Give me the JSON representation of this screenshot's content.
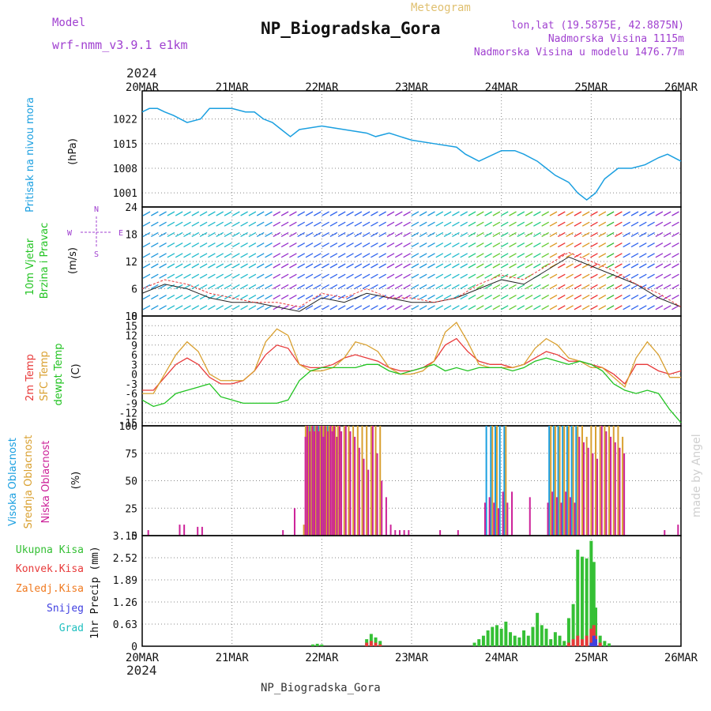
{
  "header": {
    "model_label": "Model",
    "model_name": "wrf-nmm_v3.9.1 e1km",
    "chart_type_label": "Meteogram",
    "station_title": "NP_Biogradska_Gora",
    "coords": "lon,lat (19.5875E, 42.8875N)",
    "elevation": "Nadmorska Visina 1115m",
    "model_elevation": "Nadmorska Visina u modelu 1476.77m",
    "watermark": "made by Angel",
    "footer_station": "NP_Biogradska_Gora",
    "year": "2024"
  },
  "colors": {
    "pressure": "#1a9fe0",
    "temp2m": "#e83a3a",
    "sfc_temp": "#d9a030",
    "dewpt": "#22c322",
    "high_cloud": "#1a9fe0",
    "mid_cloud": "#d9a030",
    "low_cloud": "#cc2299",
    "total_precip": "#35c035",
    "conv_precip": "#e83a3a",
    "freezing": "#f07a20",
    "snow": "#4040e0",
    "hail": "#20c0c0",
    "purple": "#a040d0",
    "gold": "#e0c070"
  },
  "chart_data": [
    {
      "type": "line",
      "panel": "pressure",
      "ylabel_lines": [
        "Pritisak na nivou mora",
        "(hPa)"
      ],
      "x_ticks": [
        "20MAR",
        "21MAR",
        "22MAR",
        "23MAR",
        "24MAR",
        "25MAR",
        "26MAR"
      ],
      "ylim": [
        997,
        1030
      ],
      "y_ticks": [
        1001,
        1008,
        1015,
        1022
      ],
      "x": [
        0,
        0.08,
        0.17,
        0.25,
        0.35,
        0.5,
        0.65,
        0.75,
        0.85,
        1.0,
        1.15,
        1.25,
        1.35,
        1.45,
        1.55,
        1.65,
        1.75,
        2.0,
        2.25,
        2.5,
        2.6,
        2.75,
        3.0,
        3.25,
        3.5,
        3.6,
        3.75,
        4.0,
        4.15,
        4.25,
        4.4,
        4.5,
        4.6,
        4.75,
        4.85,
        4.95,
        5.05,
        5.15,
        5.3,
        5.45,
        5.6,
        5.75,
        5.85,
        6.0
      ],
      "series": [
        {
          "values": [
            1024,
            1025,
            1025,
            1024,
            1023,
            1021,
            1022,
            1025,
            1025,
            1025,
            1024,
            1024,
            1022,
            1021,
            1019,
            1017,
            1019,
            1020,
            1019,
            1018,
            1017,
            1018,
            1016,
            1015,
            1014,
            1012,
            1010,
            1013,
            1013,
            1012,
            1010,
            1008,
            1006,
            1004,
            1001,
            999,
            1001,
            1005,
            1008,
            1008,
            1009,
            1011,
            1012,
            1010
          ]
        }
      ]
    },
    {
      "type": "line",
      "panel": "wind",
      "ylabel_lines": [
        "10m Vjetar",
        "Brzina i Pravac",
        "(m/s)"
      ],
      "ylim": [
        0,
        24
      ],
      "y_ticks": [
        0,
        6,
        12,
        18,
        24
      ],
      "compass": [
        "N",
        "E",
        "S",
        "W"
      ],
      "x": [
        0,
        0.25,
        0.5,
        0.75,
        1.0,
        1.25,
        1.5,
        1.75,
        2.0,
        2.25,
        2.5,
        2.75,
        3.0,
        3.25,
        3.5,
        3.75,
        4.0,
        4.25,
        4.5,
        4.75,
        5.0,
        5.25,
        5.5,
        5.75,
        6.0
      ],
      "series": [
        {
          "values": [
            5,
            7,
            6,
            4,
            3,
            3,
            2,
            1,
            4,
            3,
            5,
            4,
            3,
            3,
            4,
            6,
            8,
            7,
            10,
            13,
            11,
            9,
            7,
            4,
            2
          ]
        },
        {
          "values": [
            6,
            8,
            7,
            5,
            4,
            3,
            3,
            2,
            5,
            4,
            6,
            4,
            4,
            3,
            4,
            7,
            9,
            8,
            11,
            14,
            12,
            10,
            7,
            5,
            2
          ]
        }
      ]
    },
    {
      "type": "line",
      "panel": "temperature",
      "ylabel_lines": [
        "2m Temp",
        "SFC Temp",
        "dewpt Temp",
        "(C)"
      ],
      "ylim": [
        -16,
        18
      ],
      "y_ticks": [
        -15,
        -12,
        -9,
        -6,
        -3,
        0,
        3,
        6,
        9,
        12,
        15,
        18
      ],
      "x": [
        0,
        0.125,
        0.25,
        0.375,
        0.5,
        0.625,
        0.75,
        0.875,
        1.0,
        1.125,
        1.25,
        1.375,
        1.5,
        1.625,
        1.75,
        1.875,
        2.0,
        2.125,
        2.25,
        2.375,
        2.5,
        2.625,
        2.75,
        2.875,
        3.0,
        3.125,
        3.25,
        3.375,
        3.5,
        3.625,
        3.75,
        3.875,
        4.0,
        4.125,
        4.25,
        4.375,
        4.5,
        4.625,
        4.75,
        4.875,
        5.0,
        5.125,
        5.25,
        5.375,
        5.5,
        5.625,
        5.75,
        5.875,
        6.0
      ],
      "series": [
        {
          "name": "2m Temp",
          "values": [
            -5,
            -5,
            -1,
            3,
            5,
            3,
            -1,
            -3,
            -3,
            -2,
            1,
            6,
            9,
            8,
            3,
            2,
            2,
            3,
            5,
            6,
            5,
            4,
            2,
            1,
            1,
            2,
            4,
            9,
            11,
            7,
            4,
            3,
            3,
            2,
            3,
            5,
            7,
            6,
            4,
            4,
            3,
            2,
            0,
            -3,
            3,
            3,
            1,
            0,
            1
          ]
        },
        {
          "name": "SFC Temp",
          "values": [
            -6,
            -6,
            0,
            6,
            10,
            7,
            0,
            -2,
            -2,
            -2,
            1,
            10,
            14,
            12,
            3,
            1,
            1,
            2,
            5,
            10,
            9,
            7,
            2,
            0,
            0,
            1,
            4,
            13,
            16,
            10,
            3,
            2,
            2,
            2,
            3,
            8,
            11,
            9,
            5,
            4,
            2,
            2,
            -1,
            -4,
            5,
            10,
            6,
            -1,
            -1
          ]
        },
        {
          "name": "dewpt Temp",
          "values": [
            -8,
            -10,
            -9,
            -6,
            -5,
            -4,
            -3,
            -7,
            -8,
            -9,
            -9,
            -9,
            -9,
            -8,
            -2,
            1,
            2,
            2,
            2,
            2,
            3,
            3,
            1,
            0,
            1,
            2,
            3,
            1,
            2,
            1,
            2,
            2,
            2,
            1,
            2,
            4,
            5,
            4,
            3,
            4,
            3,
            1,
            -3,
            -5,
            -6,
            -5,
            -6,
            -11,
            -15
          ]
        }
      ]
    },
    {
      "type": "bar",
      "panel": "clouds",
      "ylabel_lines": [
        "Visoka Oblacnost",
        "Srednja Oblacnost",
        "Niska Oblacnost",
        "(%)"
      ],
      "ylim": [
        0,
        100
      ],
      "y_ticks": [
        0,
        25,
        50,
        75,
        100
      ],
      "x": [
        0.05,
        0.4,
        0.45,
        0.6,
        0.65,
        1.55,
        1.68,
        1.8,
        1.82,
        1.85,
        1.88,
        1.9,
        1.93,
        1.95,
        1.98,
        2.0,
        2.02,
        2.05,
        2.08,
        2.1,
        2.12,
        2.15,
        2.18,
        2.2,
        2.25,
        2.3,
        2.35,
        2.4,
        2.45,
        2.5,
        2.55,
        2.6,
        2.65,
        2.7,
        2.75,
        2.8,
        2.85,
        2.9,
        2.95,
        3.3,
        3.5,
        3.8,
        3.85,
        3.9,
        3.95,
        4.0,
        4.05,
        4.1,
        4.3,
        4.5,
        4.55,
        4.6,
        4.65,
        4.7,
        4.75,
        4.8,
        4.85,
        4.9,
        4.95,
        5.0,
        5.05,
        5.1,
        5.15,
        5.2,
        5.25,
        5.3,
        5.35,
        5.8,
        5.95
      ],
      "series": [
        {
          "name": "Visoka Oblacnost",
          "values": [
            0,
            0,
            0,
            0,
            0,
            0,
            0,
            0,
            0,
            0,
            100,
            100,
            100,
            100,
            100,
            100,
            100,
            100,
            100,
            100,
            0,
            0,
            0,
            0,
            0,
            0,
            0,
            0,
            0,
            0,
            0,
            0,
            0,
            0,
            0,
            0,
            0,
            0,
            0,
            0,
            0,
            0,
            100,
            100,
            100,
            100,
            100,
            0,
            0,
            0,
            100,
            100,
            100,
            100,
            100,
            100,
            100,
            0,
            0,
            0,
            0,
            0,
            0,
            0,
            0,
            0,
            0,
            0,
            0
          ]
        },
        {
          "name": "Srednja Oblacnost",
          "values": [
            0,
            0,
            0,
            0,
            0,
            0,
            0,
            10,
            100,
            100,
            100,
            100,
            100,
            100,
            100,
            100,
            100,
            100,
            100,
            100,
            100,
            100,
            100,
            100,
            100,
            100,
            100,
            100,
            100,
            100,
            100,
            100,
            100,
            0,
            0,
            0,
            0,
            0,
            0,
            0,
            0,
            0,
            0,
            100,
            100,
            0,
            100,
            0,
            0,
            0,
            100,
            100,
            100,
            100,
            100,
            100,
            100,
            100,
            90,
            100,
            100,
            100,
            100,
            100,
            100,
            100,
            90,
            0,
            0
          ]
        },
        {
          "name": "Niska Oblacnost",
          "values": [
            5,
            10,
            10,
            8,
            8,
            5,
            25,
            90,
            100,
            95,
            100,
            95,
            100,
            95,
            100,
            90,
            100,
            95,
            100,
            95,
            100,
            90,
            100,
            95,
            100,
            95,
            90,
            80,
            70,
            60,
            100,
            75,
            50,
            35,
            10,
            5,
            5,
            5,
            5,
            5,
            5,
            30,
            35,
            30,
            25,
            40,
            30,
            40,
            35,
            30,
            40,
            35,
            30,
            40,
            35,
            30,
            90,
            85,
            80,
            75,
            70,
            100,
            95,
            90,
            85,
            80,
            75,
            5,
            10
          ]
        }
      ]
    },
    {
      "type": "bar",
      "panel": "precip",
      "ylabel_lines": [
        "Ukupna Kisa",
        "Konvek.Kisa",
        "Zaledj.Kisa",
        "Snijeg",
        "Grad",
        "1hr Precip (mm)"
      ],
      "ylim": [
        0,
        3.15
      ],
      "y_ticks": [
        0,
        0.63,
        1.26,
        1.89,
        2.52,
        3.15
      ],
      "x": [
        1.9,
        1.95,
        2.0,
        2.5,
        2.55,
        2.6,
        2.65,
        3.7,
        3.75,
        3.8,
        3.85,
        3.9,
        3.95,
        4.0,
        4.05,
        4.1,
        4.15,
        4.2,
        4.25,
        4.3,
        4.35,
        4.4,
        4.45,
        4.5,
        4.55,
        4.6,
        4.65,
        4.7,
        4.75,
        4.8,
        4.85,
        4.9,
        4.95,
        5.0,
        5.03,
        5.05,
        5.1,
        5.15,
        5.2
      ],
      "series": [
        {
          "name": "Ukupna Kisa",
          "values": [
            0.05,
            0.07,
            0.05,
            0.2,
            0.35,
            0.25,
            0.15,
            0.1,
            0.2,
            0.3,
            0.45,
            0.55,
            0.6,
            0.5,
            0.7,
            0.4,
            0.3,
            0.25,
            0.45,
            0.3,
            0.55,
            0.95,
            0.6,
            0.5,
            0.2,
            0.4,
            0.3,
            0.15,
            0.8,
            1.2,
            2.75,
            2.55,
            2.5,
            3.0,
            2.4,
            1.1,
            0.3,
            0.15,
            0.08
          ]
        },
        {
          "name": "Konvek.Kisa",
          "values": [
            0,
            0,
            0,
            0.1,
            0.15,
            0.1,
            0.05,
            0,
            0,
            0,
            0,
            0,
            0,
            0,
            0,
            0,
            0,
            0,
            0,
            0,
            0,
            0,
            0,
            0,
            0,
            0,
            0,
            0,
            0.1,
            0.2,
            0.3,
            0.2,
            0.3,
            0.5,
            0.6,
            0.3,
            0.1,
            0,
            0
          ]
        },
        {
          "name": "Snijeg",
          "values": [
            0,
            0,
            0,
            0,
            0,
            0,
            0,
            0,
            0,
            0,
            0,
            0,
            0,
            0,
            0,
            0,
            0,
            0,
            0,
            0,
            0,
            0,
            0,
            0,
            0,
            0,
            0,
            0,
            0,
            0,
            0,
            0,
            0,
            0.1,
            0.3,
            0.2,
            0,
            0,
            0
          ]
        }
      ]
    }
  ],
  "legend": {
    "total_precip": "Ukupna Kisa",
    "conv_precip": "Konvek.Kisa",
    "freezing": "Zaledj.Kisa",
    "snow": "Snijeg",
    "hail": "Grad",
    "precip_unit": "1hr Precip (mm)"
  }
}
